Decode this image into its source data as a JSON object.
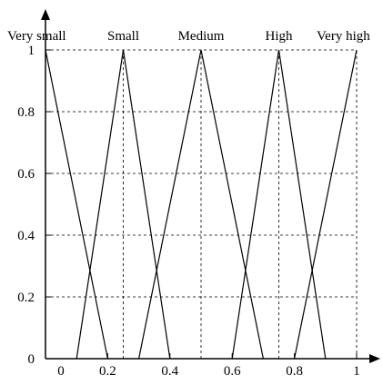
{
  "chart_data": {
    "type": "line",
    "title": "",
    "xlabel": "",
    "ylabel": "",
    "xlim": [
      0,
      1
    ],
    "ylim": [
      0,
      1
    ],
    "grid": true,
    "grid_style": "dashed",
    "x_ticks": [
      "0",
      "0.2",
      "0.4",
      "0.6",
      "0.8",
      "1"
    ],
    "y_ticks": [
      "0",
      "0.2",
      "0.4",
      "0.6",
      "0.8",
      "1"
    ],
    "series": [
      {
        "name": "Very small",
        "x": [
          0,
          0.2
        ],
        "y": [
          1,
          0
        ]
      },
      {
        "name": "Small",
        "x": [
          0.1,
          0.25,
          0.4
        ],
        "y": [
          0,
          1,
          0
        ]
      },
      {
        "name": "Medium",
        "x": [
          0.3,
          0.5,
          0.7
        ],
        "y": [
          0,
          1,
          0
        ]
      },
      {
        "name": "High",
        "x": [
          0.6,
          0.75,
          0.9
        ],
        "y": [
          0,
          1,
          0
        ]
      },
      {
        "name": "Very high",
        "x": [
          0.8,
          1
        ],
        "y": [
          0,
          1
        ]
      }
    ],
    "label_positions_x": [
      0,
      0.25,
      0.5,
      0.75,
      1
    ]
  }
}
